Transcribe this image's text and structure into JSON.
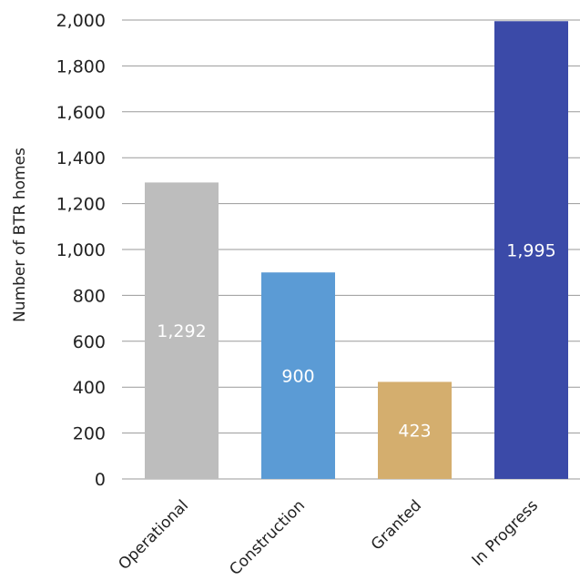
{
  "chart_data": {
    "type": "bar",
    "title": "",
    "xlabel": "",
    "ylabel": "Number of BTR homes",
    "ylim": [
      0,
      2000
    ],
    "yticks": [
      0,
      200,
      400,
      600,
      800,
      1000,
      1200,
      1400,
      1600,
      1800,
      2000
    ],
    "ytick_labels": [
      "0",
      "200",
      "400",
      "600",
      "800",
      "1,000",
      "1,200",
      "1,400",
      "1,600",
      "1,800",
      "2,000"
    ],
    "grid": true,
    "categories": [
      "Operational",
      "Construction",
      "Granted",
      "In Progress"
    ],
    "values": [
      1292,
      900,
      423,
      1995
    ],
    "data_labels": [
      "1,292",
      "900",
      "423",
      "1,995"
    ],
    "colors": [
      "#bdbdbd",
      "#5b9bd5",
      "#d4ae6e",
      "#3b4aa8"
    ]
  }
}
